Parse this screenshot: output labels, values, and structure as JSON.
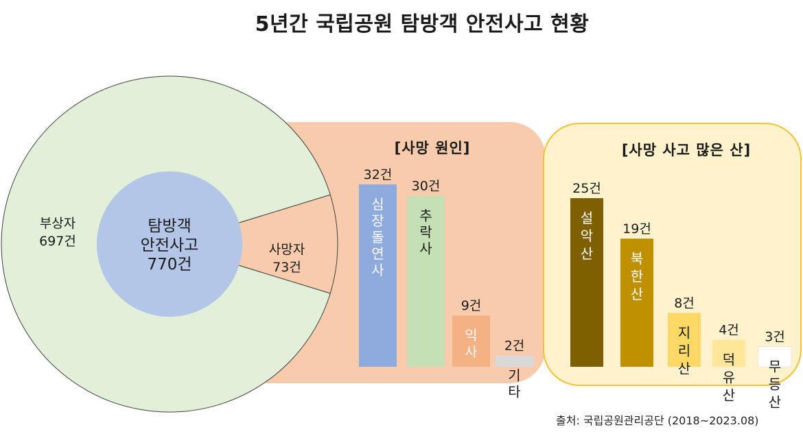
{
  "title": "5년간 국립공원 탐방객 안전사고 현황",
  "source": "출처: 국립공원관리공단 (2018~2023.08)",
  "colors": {
    "outer_ring": "#e2efd9",
    "inner_circle": "#b4c6e7",
    "death_panel": "#f8cbad",
    "mountain_panel": "#fff2cc",
    "mountain_panel_border": "#f1c232"
  },
  "chart_data": [
    {
      "type": "pie",
      "center_label": [
        "탐방객",
        "안전사고",
        "770건"
      ],
      "total": 770,
      "slices": [
        {
          "label": "부상자",
          "value_label": "697건",
          "value": 697,
          "color": "#e2efd9"
        },
        {
          "label": "사망자",
          "value_label": "73건",
          "value": 73,
          "color": "#f8cbad"
        }
      ]
    },
    {
      "type": "bar",
      "title": "[사망 원인]",
      "categories": [
        "심장돌연사",
        "추락사",
        "익사",
        "기타"
      ],
      "values": [
        32,
        30,
        9,
        2
      ],
      "value_labels": [
        "32건",
        "30건",
        "9건",
        "2건"
      ],
      "colors": [
        "#8faadc",
        "#c5e0b4",
        "#f4b183",
        "#d9d9d9"
      ],
      "ylim": [
        0,
        32
      ]
    },
    {
      "type": "bar",
      "title": "[사망 사고 많은 산]",
      "categories": [
        "설악산",
        "북한산",
        "지리산",
        "덕유산",
        "무등산"
      ],
      "values": [
        25,
        19,
        8,
        4,
        3
      ],
      "value_labels": [
        "25건",
        "19건",
        "8건",
        "4건",
        "3건"
      ],
      "colors": [
        "#7f6000",
        "#bf9000",
        "#ffd966",
        "#ffe699",
        "#ffffff"
      ],
      "ylim": [
        0,
        25
      ]
    }
  ]
}
